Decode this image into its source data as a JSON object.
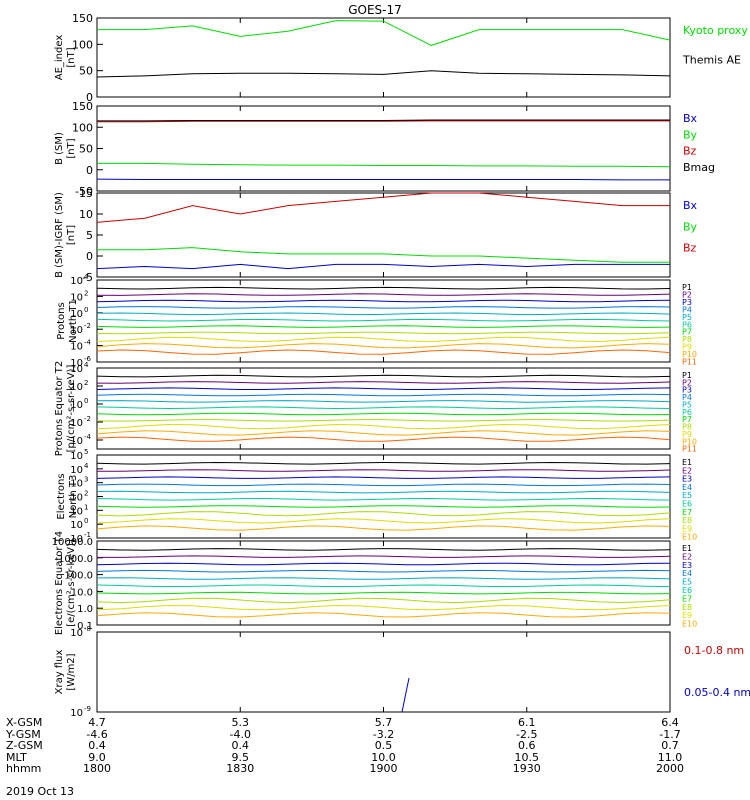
{
  "title": "GOES-17",
  "date": "2019 Oct 13",
  "colors": {
    "black": "#000000",
    "blue": "#0000cc",
    "green": "#00dd00",
    "red": "#cc0000",
    "p": [
      "#000000",
      "#660077",
      "#0000cc",
      "#0077dd",
      "#00aacc",
      "#00cc99",
      "#00dd00",
      "#aadd00",
      "#dddd00",
      "#ffaa00",
      "#ff6600",
      "#cc0000"
    ]
  },
  "orbit": {
    "labels": [
      "X-GSM",
      "Y-GSM",
      "Z-GSM",
      "MLT",
      "hhmm"
    ],
    "ticks": [
      [
        "4.7",
        "-4.6",
        "0.4",
        "9.0",
        "1800"
      ],
      [
        "5.3",
        "-4.0",
        "0.4",
        "9.5",
        "1830"
      ],
      [
        "5.7",
        "-3.2",
        "0.5",
        "10.0",
        "1900"
      ],
      [
        "6.1",
        "-2.5",
        "0.6",
        "10.5",
        "1930"
      ],
      [
        "6.4",
        "-1.7",
        "0.7",
        "11.0",
        "2000"
      ]
    ]
  },
  "chart_data": [
    {
      "type": "line",
      "ylabel": "AE_index [nT]",
      "ylim": [
        0,
        150
      ],
      "yticks": [
        "0",
        "50",
        "100",
        "150"
      ],
      "x": [
        "18:00",
        "18:10",
        "18:20",
        "18:30",
        "18:40",
        "18:50",
        "19:00",
        "19:10",
        "19:20",
        "19:30",
        "19:40",
        "19:50",
        "20:00"
      ],
      "series": [
        {
          "name": "Kyoto proxy AE",
          "color": "green",
          "values": [
            128,
            128,
            135,
            115,
            125,
            145,
            144,
            98,
            128,
            128,
            128,
            128,
            108
          ]
        },
        {
          "name": "Themis AE",
          "color": "black",
          "values": [
            38,
            40,
            44,
            45,
            45,
            44,
            43,
            50,
            45,
            44,
            43,
            42,
            40
          ]
        }
      ]
    },
    {
      "type": "line",
      "ylabel": "B (SM) [nT]",
      "ylim": [
        -50,
        150
      ],
      "yticks": [
        "-50",
        "0",
        "50",
        "100",
        "150"
      ],
      "series": [
        {
          "name": "Bx",
          "color": "blue",
          "values": [
            -22,
            -23,
            -23,
            -23,
            -23,
            -23,
            -23,
            -23,
            -23,
            -23,
            -23,
            -24,
            -24
          ]
        },
        {
          "name": "By",
          "color": "green",
          "values": [
            15,
            15,
            13,
            12,
            11,
            11,
            10,
            10,
            9,
            9,
            8,
            8,
            7
          ]
        },
        {
          "name": "Bz",
          "color": "red",
          "values": [
            113,
            113,
            114,
            114,
            114,
            114,
            114,
            115,
            115,
            115,
            115,
            115,
            115
          ]
        },
        {
          "name": "Bmag",
          "color": "black",
          "values": [
            115,
            115,
            116,
            116,
            116,
            116,
            116,
            117,
            117,
            117,
            117,
            117,
            117
          ]
        }
      ]
    },
    {
      "type": "line",
      "ylabel": "B (SM)-IGRF (SM) [nT]",
      "ylim": [
        -5,
        15
      ],
      "yticks": [
        "-5",
        "0",
        "5",
        "10",
        "15"
      ],
      "series": [
        {
          "name": "Bx",
          "color": "blue",
          "values": [
            -3,
            -2.5,
            -3,
            -2,
            -3,
            -2,
            -2,
            -2.5,
            -2,
            -2.5,
            -2,
            -2,
            -2
          ]
        },
        {
          "name": "By",
          "color": "green",
          "values": [
            1.5,
            1.5,
            2,
            1,
            0.5,
            0.5,
            0.5,
            0,
            0,
            -0.5,
            -1,
            -1.5,
            -1.5
          ]
        },
        {
          "name": "Bz",
          "color": "red",
          "values": [
            8,
            9,
            12,
            10,
            12,
            13,
            14,
            15,
            15,
            14,
            13,
            12,
            12
          ]
        }
      ]
    },
    {
      "type": "line",
      "log": true,
      "ylabel": "Protons North T1",
      "ylim_exp": [
        -6,
        4
      ],
      "ytick_exps": [
        -6,
        -4,
        -2,
        0,
        2,
        4
      ],
      "channels": [
        "P1",
        "P2",
        "P3",
        "P4",
        "P5",
        "P6",
        "P7",
        "P8",
        "P9",
        "P10",
        "P11"
      ]
    },
    {
      "type": "line",
      "log": true,
      "ylabel": "Protons Equator T2 [p/(cm²-s-sr-keV)]",
      "ylim_exp": [
        -5,
        4
      ],
      "ytick_exps": [
        -4,
        -2,
        0,
        2,
        4
      ],
      "channels": [
        "P1",
        "P2",
        "P3",
        "P4",
        "P5",
        "P6",
        "P7",
        "P8",
        "P9",
        "P10",
        "P11"
      ]
    },
    {
      "type": "line",
      "log": true,
      "ylabel": "Electrons North T3",
      "ylim_exp": [
        -1,
        5
      ],
      "ytick_exps": [
        -1,
        0,
        1,
        2,
        3,
        4,
        5
      ],
      "channels": [
        "E1",
        "E2",
        "E3",
        "E4",
        "E5",
        "E6",
        "E7",
        "E8",
        "E9",
        "E10"
      ]
    },
    {
      "type": "line",
      "log": true,
      "ylabel": "Electrons Equator T4 [e/(cm²-s-sr-keV)]",
      "ylim_exp": [
        -1,
        4
      ],
      "yticks": [
        "0.1",
        "1.0",
        "10.0",
        "100.0",
        "1000.0",
        "10000.0"
      ],
      "channels": [
        "E1",
        "E2",
        "E3",
        "E4",
        "E5",
        "E6",
        "E7",
        "E8",
        "E9",
        "E10"
      ]
    },
    {
      "type": "line",
      "log": true,
      "ylabel": "Xray flux [W/m2]",
      "ylim_exp": [
        -9,
        -8
      ],
      "ytick_exps": [
        -9,
        -8
      ],
      "series": [
        {
          "name": "0.1-0.8 nm",
          "color": "red"
        },
        {
          "name": "0.05-0.4 nm",
          "color": "blue"
        }
      ]
    }
  ]
}
